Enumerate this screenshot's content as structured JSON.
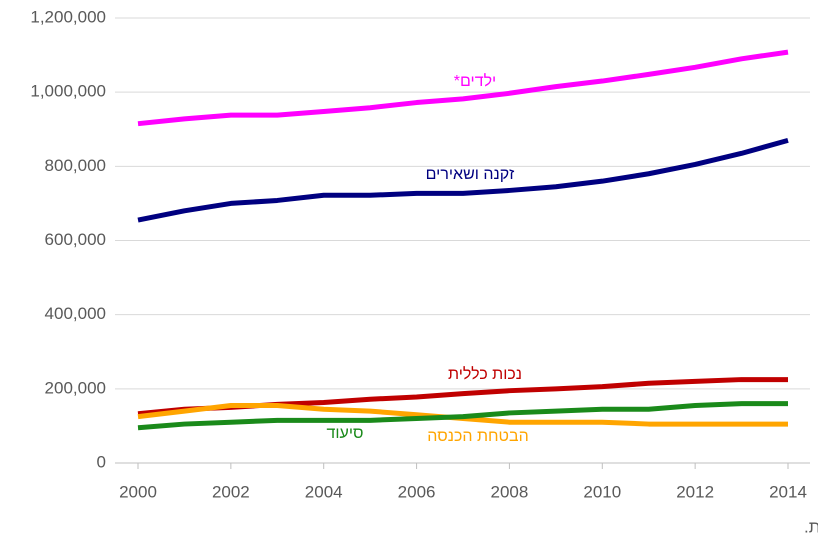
{
  "chart_data": {
    "type": "line",
    "x": [
      2000,
      2001,
      2002,
      2003,
      2004,
      2005,
      2006,
      2007,
      2008,
      2009,
      2010,
      2011,
      2012,
      2013,
      2014
    ],
    "series": [
      {
        "name": "ילדים*",
        "color": "#ff00ff",
        "values": [
          915000,
          928000,
          938000,
          938000,
          948000,
          958000,
          972000,
          982000,
          997000,
          1015000,
          1030000,
          1048000,
          1067000,
          1090000,
          1108000
        ]
      },
      {
        "name": "זקנה ושאירים",
        "color": "#000080",
        "values": [
          655000,
          680000,
          700000,
          708000,
          722000,
          722000,
          727000,
          727000,
          735000,
          745000,
          760000,
          780000,
          805000,
          835000,
          870000
        ]
      },
      {
        "name": "נכות כללית",
        "color": "#c00000",
        "values": [
          133000,
          145000,
          150000,
          158000,
          163000,
          172000,
          178000,
          187000,
          195000,
          200000,
          206000,
          215000,
          220000,
          225000,
          225000
        ]
      },
      {
        "name": "הבטחת הכנסה",
        "color": "#ffa500",
        "values": [
          125000,
          140000,
          155000,
          155000,
          145000,
          140000,
          130000,
          120000,
          110000,
          110000,
          110000,
          105000,
          105000,
          105000,
          105000
        ]
      },
      {
        "name": "סיעוד",
        "color": "#1a8a1a",
        "values": [
          95000,
          105000,
          110000,
          115000,
          115000,
          115000,
          120000,
          125000,
          135000,
          140000,
          145000,
          145000,
          155000,
          160000,
          160000
        ]
      }
    ],
    "xlim": [
      2000,
      2014
    ],
    "xticks": [
      2000,
      2002,
      2004,
      2006,
      2008,
      2010,
      2012,
      2014
    ],
    "ylim": [
      0,
      1200000
    ],
    "yticks": [
      0,
      {
        "value": 200000,
        "label": "200,000"
      },
      {
        "value": 400000,
        "label": "400,000"
      },
      {
        "value": 600000,
        "label": "600,000"
      },
      {
        "value": 800000,
        "label": "800,000"
      },
      {
        "value": 1000000,
        "label": "1,000,000"
      },
      {
        "value": 1200000,
        "label": "1,200,000"
      }
    ],
    "grid": true,
    "note": "* משפחות."
  }
}
